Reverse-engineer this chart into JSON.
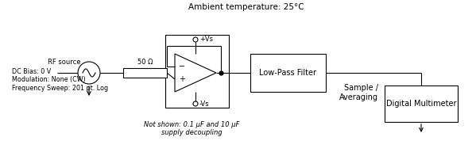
{
  "title": "Ambient temperature: 25°C",
  "bg_color": "#ffffff",
  "line_color": "#000000",
  "rf_source_label": "RF source",
  "rf_source_details": "DC Bias: 0 V\nModulation: None (CW)\nFrequency Sweep: 201 pt. Log",
  "resistor_label": "50 Ω",
  "not_shown_label": "Not shown: 0.1 μF and 10 μF\nsupply decoupling",
  "lpf_label": "Low-Pass Filter",
  "sample_label": "Sample /\nAveraging",
  "dmm_label": "Digital Multimeter",
  "vplus_label": "+Vs",
  "vminus_label": "-Vs"
}
